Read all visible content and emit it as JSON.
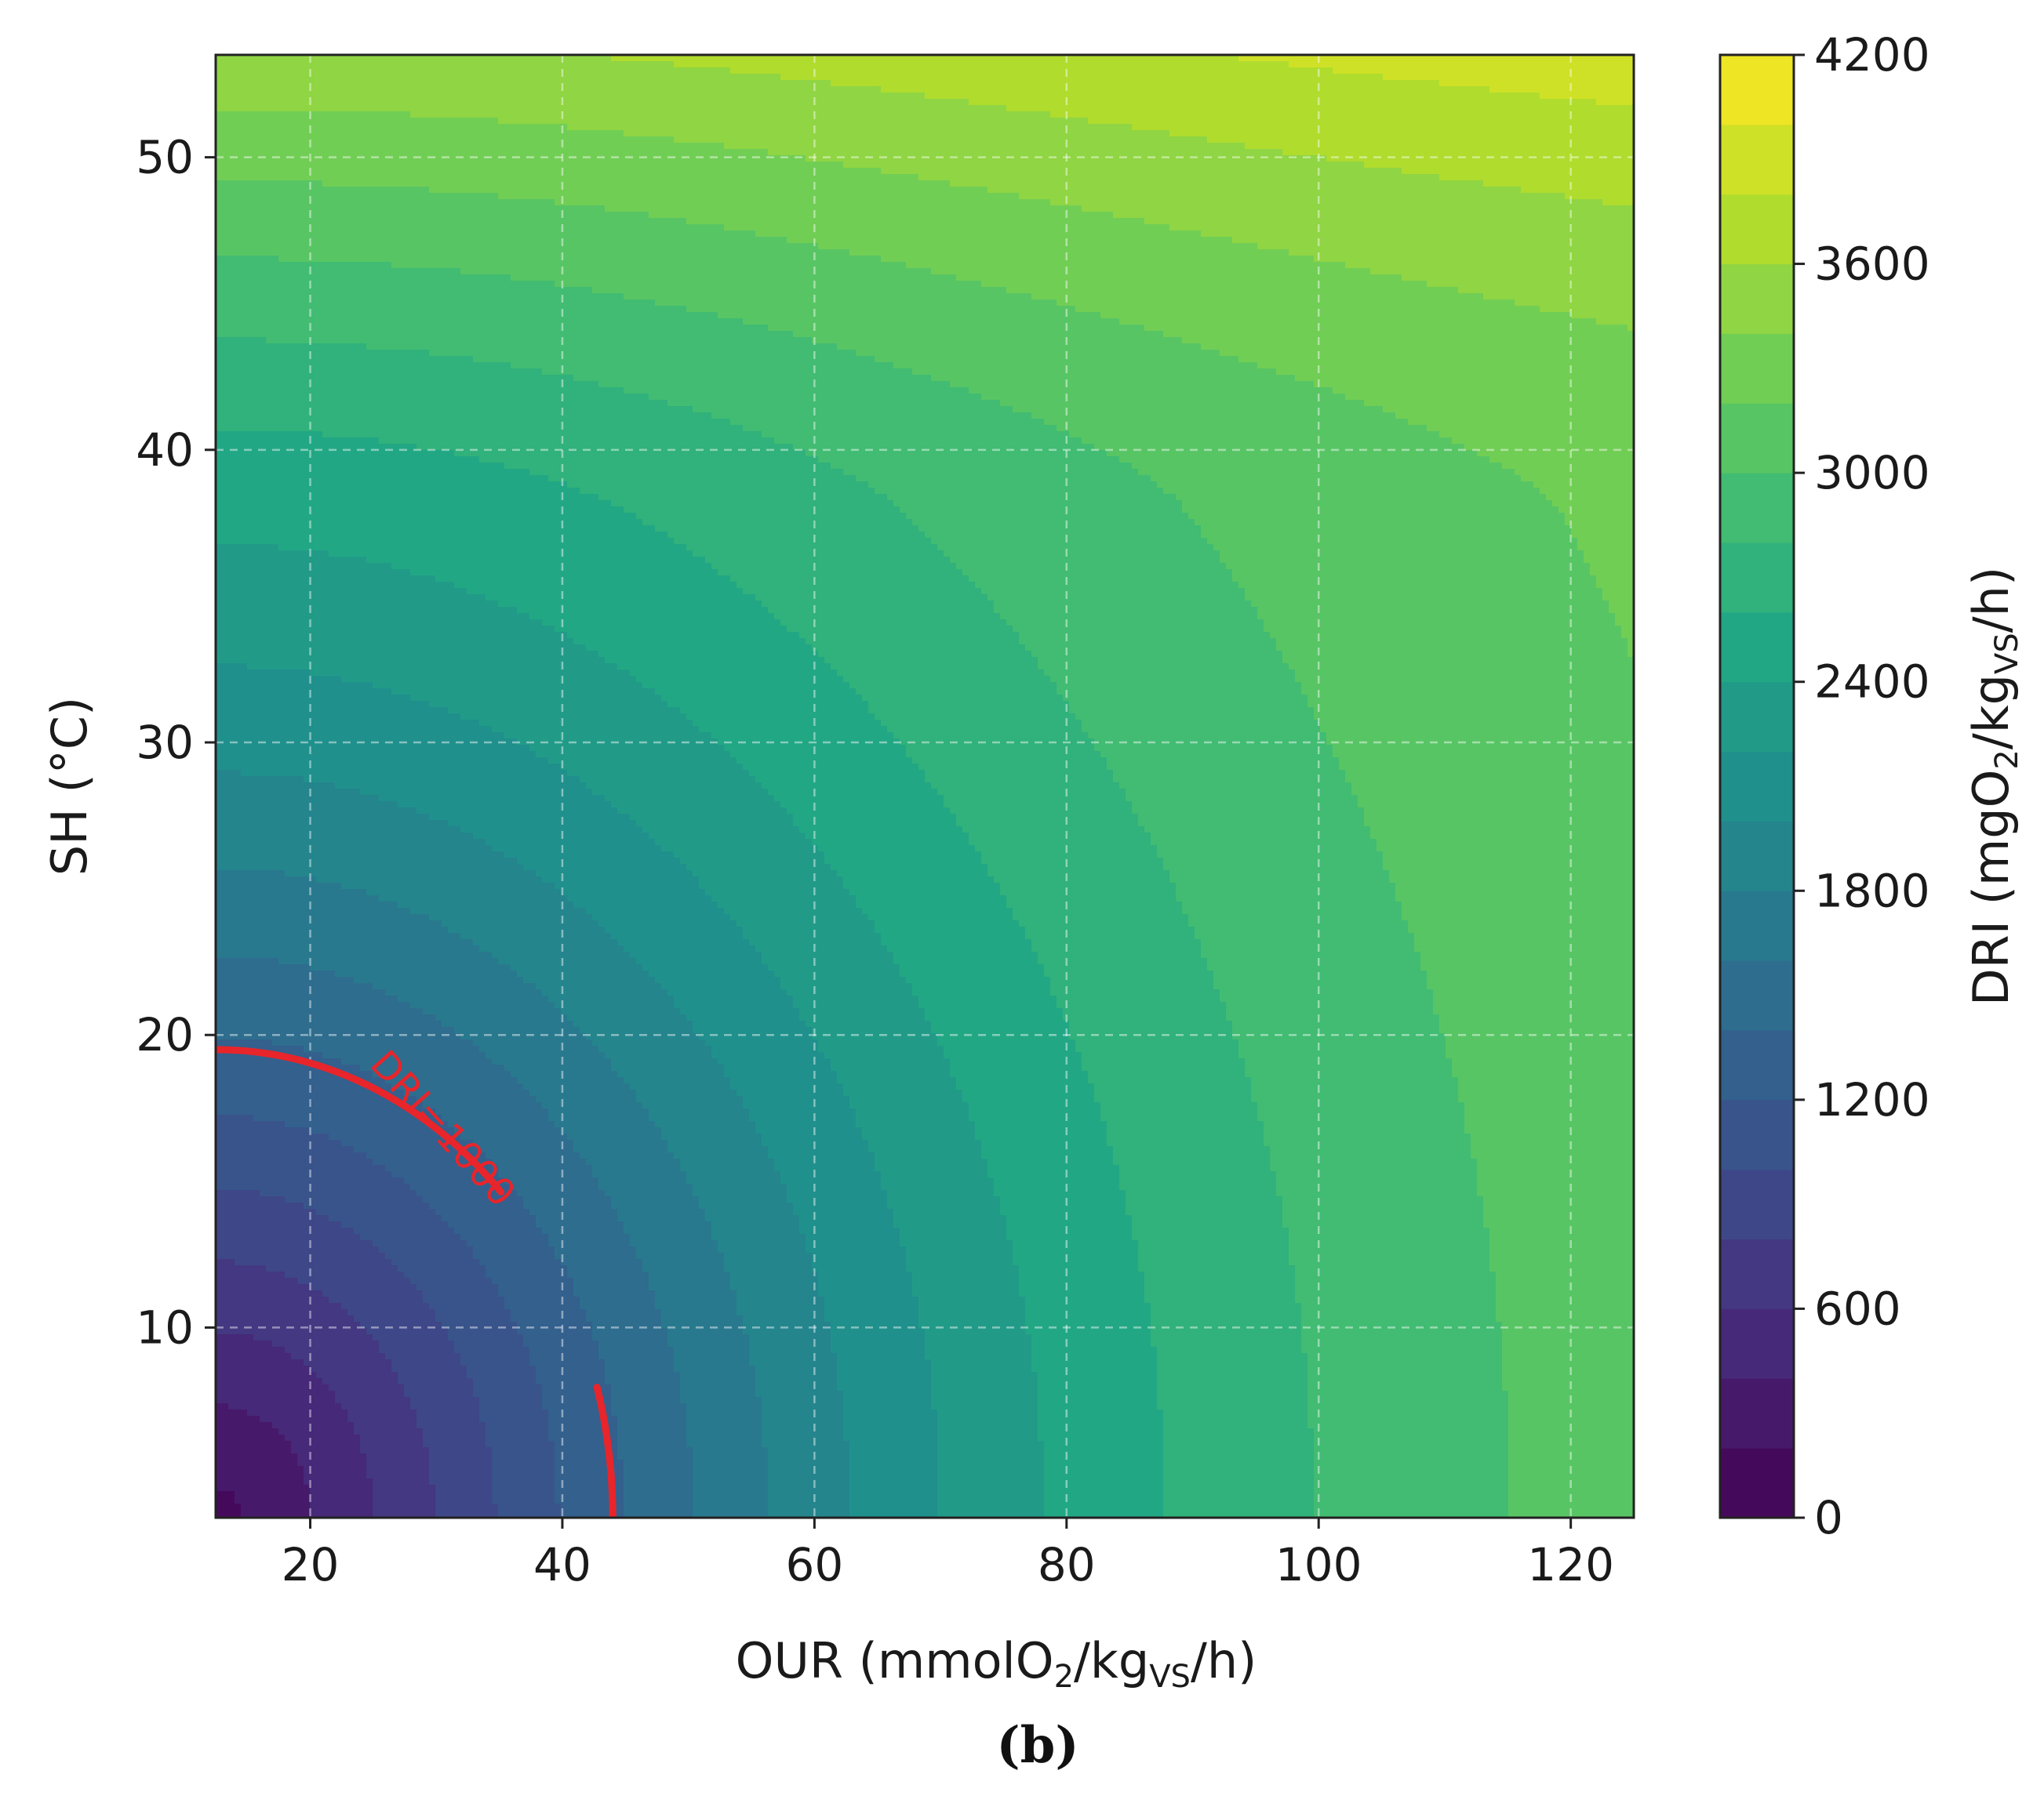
{
  "chart_data": {
    "type": "heatmap",
    "subtype": "filled-contour",
    "panel_label": "(b)",
    "xlabel": {
      "main": "OUR (mmolO",
      "sub1": "2",
      "mid": "/kg",
      "sub2": "VS",
      "end": "/h)"
    },
    "ylabel": "SH (°C)",
    "colorbar_label": {
      "main": "DRI (mgO",
      "sub1": "2",
      "mid": "/kg",
      "sub2": "VS",
      "end": "/h)"
    },
    "xlim": [
      12.5,
      125
    ],
    "ylim": [
      3.5,
      53.5
    ],
    "x_ticks": [
      20,
      40,
      60,
      80,
      100,
      120
    ],
    "x_tick_labels": [
      "20",
      "40",
      "60",
      "80",
      "100",
      "120"
    ],
    "y_ticks": [
      10,
      20,
      30,
      40,
      50
    ],
    "y_tick_labels": [
      "10",
      "20",
      "30",
      "40",
      "50"
    ],
    "colorbar_range": [
      0,
      4200
    ],
    "colorbar_level_step": 200,
    "colorbar_ticks": [
      0,
      600,
      1200,
      1800,
      2400,
      3000,
      3600,
      4200
    ],
    "colorbar_tick_labels": [
      "0",
      "600",
      "1200",
      "1800",
      "2400",
      "3000",
      "3600",
      "4200"
    ],
    "colormap": "viridis",
    "grid": true,
    "surface": {
      "description_x": "OUR",
      "description_y": "SH",
      "sample_points": [
        {
          "x": 12.5,
          "y": 3.5,
          "dri": 150
        },
        {
          "x": 44,
          "y": 3.5,
          "dri": 1000
        },
        {
          "x": 12.5,
          "y": 19.5,
          "dri": 1000
        },
        {
          "x": 60,
          "y": 10,
          "dri": 1700
        },
        {
          "x": 80,
          "y": 30,
          "dri": 2300
        },
        {
          "x": 100,
          "y": 40,
          "dri": 2900
        },
        {
          "x": 120,
          "y": 10,
          "dri": 3300
        },
        {
          "x": 20,
          "y": 52,
          "dri": 3900
        },
        {
          "x": 120,
          "y": 52,
          "dri": 3800
        }
      ]
    },
    "contour_line": {
      "level": 1000,
      "label": "DRI=1000",
      "color": "#e8252b"
    }
  }
}
